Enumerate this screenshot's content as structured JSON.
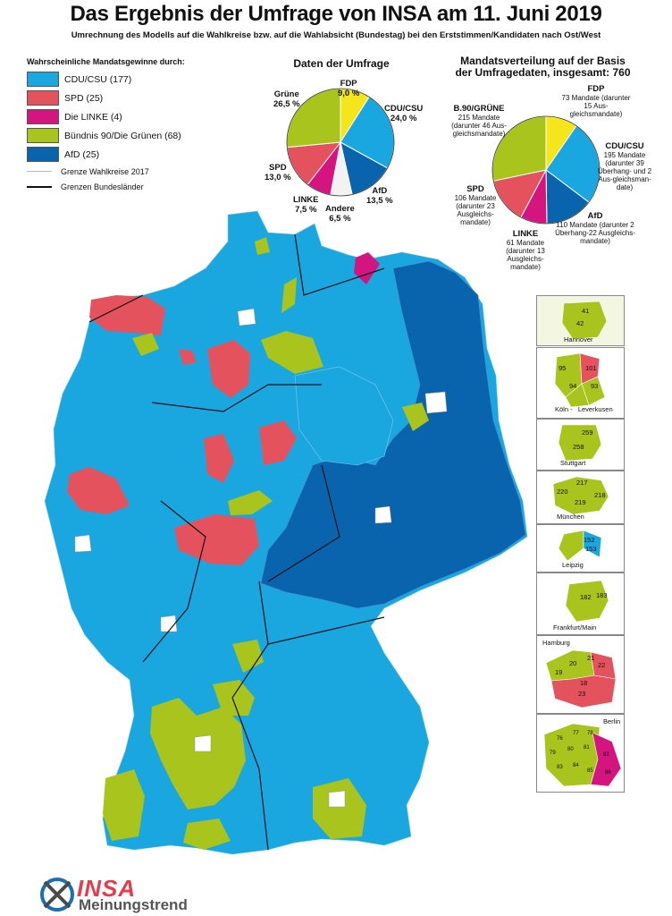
{
  "header": {
    "title": "Das Ergebnis der Umfrage von INSA am 11. Juni 2019",
    "subtitle": "Umrechnung des Modells auf die Wahlkreise bzw. auf die Wahlabsicht (Bundestag) bei den Erststimmen/Kandidaten nach Ost/West"
  },
  "legend": {
    "title": "Wahrscheinliche Mandatsgewinne durch:",
    "items": [
      {
        "label": "CDU/CSU (177)",
        "color": "#1aa7e0"
      },
      {
        "label": "SPD (25)",
        "color": "#e4525e"
      },
      {
        "label": "Die LINKE (4)",
        "color": "#d4147f"
      },
      {
        "label": "Bündnis 90/Die Grünen (68)",
        "color": "#a8c41d"
      },
      {
        "label": "AfD (25)",
        "color": "#0a64ad"
      }
    ],
    "lines": [
      {
        "label": "Grenze Wahlkreise 2017"
      },
      {
        "label": "Grenzen Bundesländer"
      }
    ]
  },
  "survey_pie": {
    "title": "Daten der Umfrage",
    "slices": [
      {
        "party": "FDP",
        "value": 9.0,
        "color": "#f5e61b",
        "label": "FDP",
        "pct": "9,0 %"
      },
      {
        "party": "CDU/CSU",
        "value": 24.0,
        "color": "#1aa7e0",
        "label": "CDU/CSU",
        "pct": "24,0 %"
      },
      {
        "party": "AfD",
        "value": 13.5,
        "color": "#0a64ad",
        "label": "AfD",
        "pct": "13,5 %"
      },
      {
        "party": "Andere",
        "value": 6.5,
        "color": "#f2f2f2",
        "label": "Andere",
        "pct": "6,5 %"
      },
      {
        "party": "LINKE",
        "value": 7.5,
        "color": "#d4147f",
        "label": "LINKE",
        "pct": "7,5 %"
      },
      {
        "party": "SPD",
        "value": 13.0,
        "color": "#e4525e",
        "label": "SPD",
        "pct": "13,0 %"
      },
      {
        "party": "Grüne",
        "value": 26.5,
        "color": "#a8c41d",
        "label": "Grüne",
        "pct": "26,5 %"
      }
    ]
  },
  "seat_pie": {
    "title_line1": "Mandatsverteilung auf der Basis",
    "title_line2": "der Umfragedaten, insgesamt: 760",
    "slices": [
      {
        "party": "FDP",
        "value": 73,
        "color": "#f5e61b",
        "label": "FDP",
        "detail": "73 Mandate (darunter 15 Aus-gleichsmandate)"
      },
      {
        "party": "CDU/CSU",
        "value": 195,
        "color": "#1aa7e0",
        "label": "CDU/CSU",
        "detail": "195 Mandate (darunter 39 Überhang- und 2 Aus-gleichsman-date)"
      },
      {
        "party": "AfD",
        "value": 110,
        "color": "#0a64ad",
        "label": "AfD",
        "detail": "110 Mandate (darunter 2 Überhang-22 Ausgleichs-mandate)"
      },
      {
        "party": "LINKE",
        "value": 61,
        "color": "#d4147f",
        "label": "LINKE",
        "detail": "61 Mandate (darunter 13 Ausgleichs-mandate)"
      },
      {
        "party": "SPD",
        "value": 106,
        "color": "#e4525e",
        "label": "SPD",
        "detail": "106 Mandate (darunter 23 Ausgleichs-mandate)"
      },
      {
        "party": "B.90/GRÜNE",
        "value": 215,
        "color": "#a8c41d",
        "label": "B.90/GRÜNE",
        "detail": "215 Mandate (darunter 46 Aus-gleichsmandate)"
      }
    ]
  },
  "insets": [
    {
      "city": "Hannover",
      "numbers": [
        "41",
        "42"
      ]
    },
    {
      "city": "Köln -   Leverkusen",
      "numbers": [
        "95",
        "101",
        "94",
        "93"
      ]
    },
    {
      "city": "Stuttgart",
      "numbers": [
        "259",
        "258"
      ]
    },
    {
      "city": "München",
      "numbers": [
        "217",
        "220",
        "218",
        "219"
      ]
    },
    {
      "city": "Leipzig",
      "numbers": [
        "152",
        "153"
      ]
    },
    {
      "city": "Frankfurt/Main",
      "numbers": [
        "182",
        "183"
      ]
    },
    {
      "city": "Hamburg",
      "numbers": [
        "21",
        "20",
        "19",
        "22",
        "18",
        "23"
      ]
    },
    {
      "city": "Berlin",
      "numbers": [
        "76",
        "77",
        "78",
        "79",
        "80",
        "81",
        "82",
        "83",
        "84",
        "85",
        "86"
      ]
    }
  ],
  "logo": {
    "brand": "INSA",
    "tagline": "Meinungstrend"
  }
}
